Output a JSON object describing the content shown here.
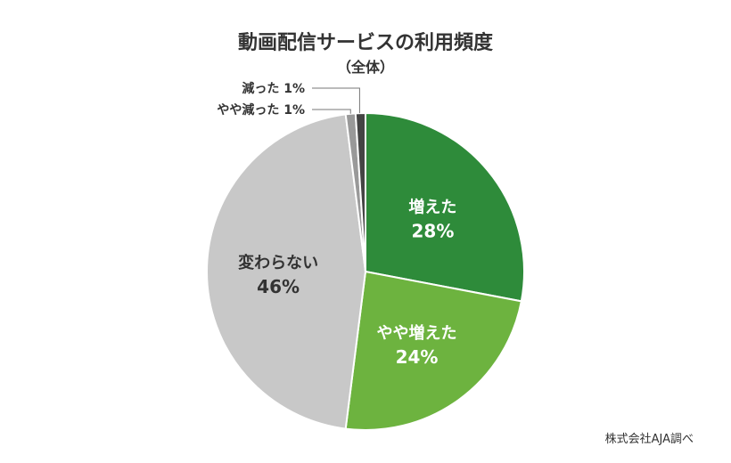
{
  "chart_data": {
    "type": "pie",
    "title": "動画配信サービスの利用頻度",
    "subtitle": "（全体）",
    "slices": [
      {
        "label": "増えた",
        "value": 28,
        "value_text": "28%",
        "color": "#2e8b3a"
      },
      {
        "label": "やや増えた",
        "value": 24,
        "value_text": "24%",
        "color": "#6db33f"
      },
      {
        "label": "変わらない",
        "value": 46,
        "value_text": "46%",
        "color": "#c8c8c8"
      },
      {
        "label": "やや減った",
        "value": 1,
        "value_text": "1%",
        "color": "#999999"
      },
      {
        "label": "減った",
        "value": 1,
        "value_text": "1%",
        "color": "#444444"
      }
    ]
  },
  "source": "株式会社AJA調べ"
}
